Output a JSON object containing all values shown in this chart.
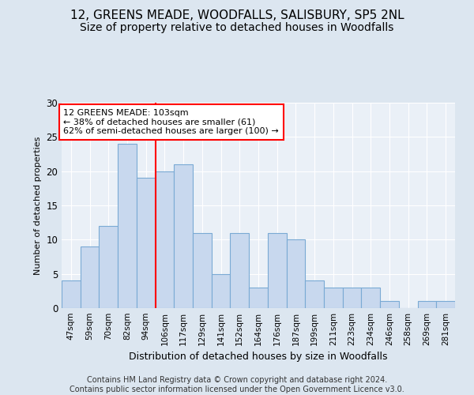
{
  "title1": "12, GREENS MEADE, WOODFALLS, SALISBURY, SP5 2NL",
  "title2": "Size of property relative to detached houses in Woodfalls",
  "xlabel": "Distribution of detached houses by size in Woodfalls",
  "ylabel": "Number of detached properties",
  "categories": [
    "47sqm",
    "59sqm",
    "70sqm",
    "82sqm",
    "94sqm",
    "106sqm",
    "117sqm",
    "129sqm",
    "141sqm",
    "152sqm",
    "164sqm",
    "176sqm",
    "187sqm",
    "199sqm",
    "211sqm",
    "223sqm",
    "234sqm",
    "246sqm",
    "258sqm",
    "269sqm",
    "281sqm"
  ],
  "values": [
    4,
    9,
    12,
    24,
    19,
    20,
    21,
    11,
    5,
    11,
    3,
    11,
    10,
    4,
    3,
    3,
    3,
    1,
    0,
    1,
    1
  ],
  "bar_color": "#c8d8ee",
  "bar_edge_color": "#7aaad4",
  "vline_x": 4.5,
  "vline_color": "red",
  "annotation_text": "12 GREENS MEADE: 103sqm\n← 38% of detached houses are smaller (61)\n62% of semi-detached houses are larger (100) →",
  "annotation_box_color": "white",
  "annotation_box_edge": "red",
  "ylim": [
    0,
    30
  ],
  "yticks": [
    0,
    5,
    10,
    15,
    20,
    25,
    30
  ],
  "bg_color": "#dce6f0",
  "plot_bg_color": "#eaf0f7",
  "footer": "Contains HM Land Registry data © Crown copyright and database right 2024.\nContains public sector information licensed under the Open Government Licence v3.0.",
  "title1_fontsize": 11,
  "title2_fontsize": 10,
  "footer_fontsize": 7,
  "ylabel_fontsize": 8,
  "xlabel_fontsize": 9
}
